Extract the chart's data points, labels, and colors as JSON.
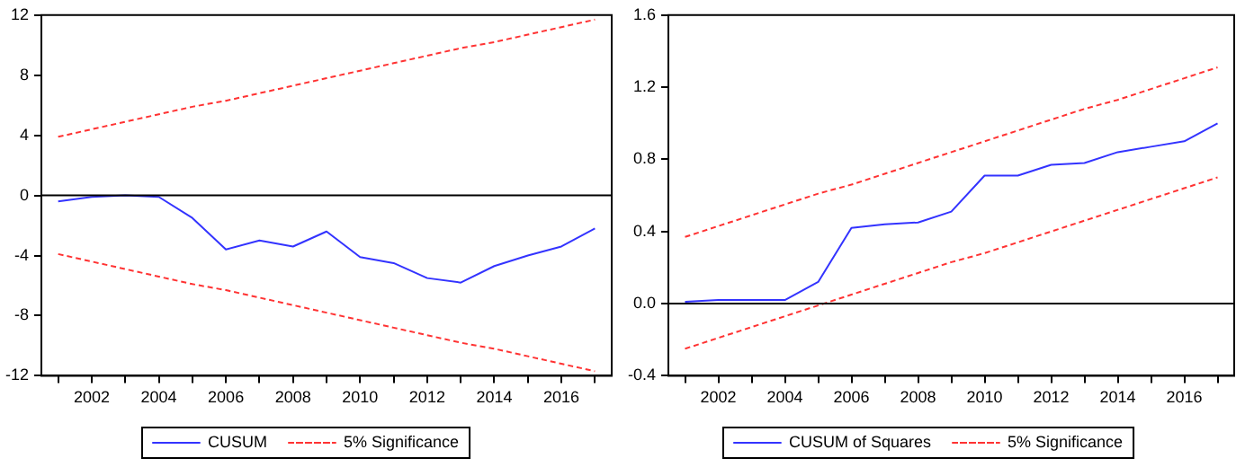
{
  "chart_data": [
    {
      "type": "line",
      "xlim": [
        2000.5,
        2017.5
      ],
      "xticks": [
        {
          "value": 2001,
          "label": null
        },
        2002,
        {
          "value": 2003,
          "label": null
        },
        2004,
        {
          "value": 2005,
          "label": null
        },
        2006,
        {
          "value": 2007,
          "label": null
        },
        2008,
        {
          "value": 2009,
          "label": null
        },
        2010,
        {
          "value": 2011,
          "label": null
        },
        2012,
        {
          "value": 2013,
          "label": null
        },
        2014,
        {
          "value": 2015,
          "label": null
        },
        2016,
        {
          "value": 2017,
          "label": null
        }
      ],
      "ylim": [
        -12,
        12
      ],
      "yticks": [
        -12,
        -8,
        -4,
        0,
        4,
        8,
        12
      ],
      "legend": "bottom",
      "marker": "none",
      "x": [
        2001,
        2002,
        2003,
        2004,
        2005,
        2006,
        2007,
        2008,
        2009,
        2010,
        2011,
        2012,
        2013,
        2014,
        2015,
        2016,
        2017
      ],
      "series": [
        {
          "name": "CUSUM",
          "color": "#3333ff",
          "line_style": "solid",
          "values": [
            -0.4,
            -0.1,
            0,
            -0.1,
            -1.5,
            -3.6,
            -3.0,
            -3.4,
            -2.4,
            -4.1,
            -4.5,
            -5.5,
            -5.8,
            -4.7,
            -4.0,
            -3.4,
            -2.2
          ]
        },
        {
          "name": "5% Significance",
          "color": "#ff3333",
          "line_style": "dashed",
          "values": [
            3.9,
            4.4,
            4.9,
            5.4,
            5.9,
            6.3,
            6.8,
            7.3,
            7.8,
            8.3,
            8.8,
            9.3,
            9.8,
            10.2,
            10.7,
            11.2,
            11.7
          ]
        },
        {
          "color": "#ff3333",
          "line_style": "dashed",
          "values": [
            -3.9,
            -4.4,
            -4.9,
            -5.4,
            -5.9,
            -6.3,
            -6.8,
            -7.3,
            -7.8,
            -8.3,
            -8.8,
            -9.3,
            -9.8,
            -10.2,
            -10.7,
            -11.2,
            -11.7
          ]
        }
      ],
      "ref_lines": [
        {
          "axis": "y",
          "value": 0,
          "color": "#000000"
        }
      ]
    },
    {
      "type": "line",
      "xlim": [
        2000.5,
        2017.5
      ],
      "xticks": [
        {
          "value": 2001,
          "label": null
        },
        2002,
        {
          "value": 2003,
          "label": null
        },
        2004,
        {
          "value": 2005,
          "label": null
        },
        2006,
        {
          "value": 2007,
          "label": null
        },
        2008,
        {
          "value": 2009,
          "label": null
        },
        2010,
        {
          "value": 2011,
          "label": null
        },
        2012,
        {
          "value": 2013,
          "label": null
        },
        2014,
        {
          "value": 2015,
          "label": null
        },
        2016,
        {
          "value": 2017,
          "label": null
        }
      ],
      "ylim": [
        -0.4,
        1.6
      ],
      "yticks": [
        -0.4,
        {
          "value": 0,
          "label": "0.0"
        },
        0.4,
        0.8,
        1.2,
        1.6
      ],
      "legend": "bottom",
      "marker": "none",
      "x": [
        2001,
        2002,
        2003,
        2004,
        2005,
        2006,
        2007,
        2008,
        2009,
        2010,
        2011,
        2012,
        2013,
        2014,
        2015,
        2016,
        2017
      ],
      "series": [
        {
          "name": "CUSUM of Squares",
          "color": "#3333ff",
          "line_style": "solid",
          "values": [
            0.01,
            0.02,
            0.02,
            0.02,
            0.12,
            0.42,
            0.44,
            0.45,
            0.51,
            0.71,
            0.71,
            0.77,
            0.78,
            0.84,
            0.87,
            0.9,
            1.0
          ]
        },
        {
          "name": "5% Significance",
          "color": "#ff3333",
          "line_style": "dashed",
          "values": [
            0.37,
            0.43,
            0.49,
            0.55,
            0.61,
            0.66,
            0.72,
            0.78,
            0.84,
            0.9,
            0.96,
            1.02,
            1.08,
            1.13,
            1.19,
            1.25,
            1.31
          ]
        },
        {
          "color": "#ff3333",
          "line_style": "dashed",
          "values": [
            -0.25,
            -0.19,
            -0.13,
            -0.07,
            -0.01,
            0.05,
            0.11,
            0.17,
            0.23,
            0.28,
            0.34,
            0.4,
            0.46,
            0.52,
            0.58,
            0.64,
            0.7
          ]
        }
      ],
      "ref_lines": [
        {
          "axis": "y",
          "value": 0,
          "color": "#000000"
        }
      ]
    }
  ]
}
